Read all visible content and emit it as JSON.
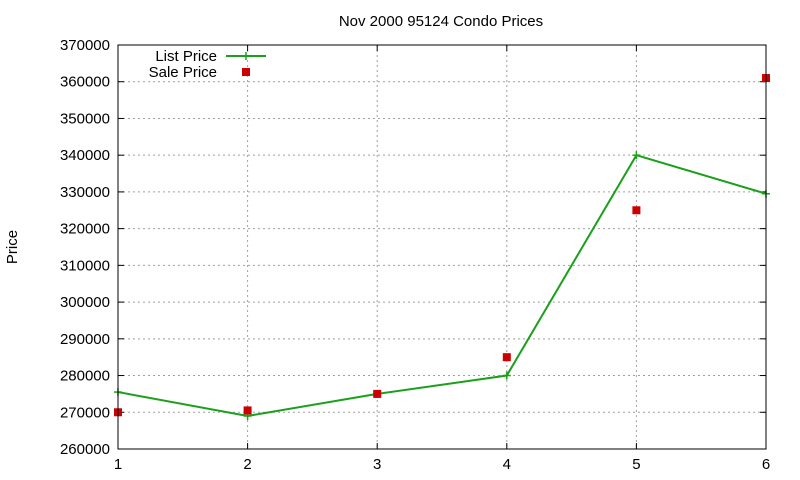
{
  "chart_data": {
    "type": "line",
    "title": "Nov 2000 95124 Condo Prices",
    "xlabel": "",
    "ylabel": "Price",
    "x": [
      1,
      2,
      3,
      4,
      5,
      6
    ],
    "xlim": [
      1,
      6
    ],
    "ylim": [
      260000,
      370000
    ],
    "xticks": [
      1,
      2,
      3,
      4,
      5,
      6
    ],
    "yticks": [
      260000,
      270000,
      280000,
      290000,
      300000,
      310000,
      320000,
      330000,
      340000,
      350000,
      360000,
      370000
    ],
    "grid": true,
    "legend_position": "top-left",
    "series": [
      {
        "name": "List Price",
        "style": "linespoints",
        "marker": "plus",
        "color": "#1aa01a",
        "values": [
          275500,
          269000,
          275000,
          280000,
          340000,
          329500
        ]
      },
      {
        "name": "Sale Price",
        "style": "points",
        "marker": "square",
        "color": "#cc0000",
        "values": [
          270000,
          270500,
          275000,
          285000,
          325000,
          361000
        ]
      }
    ]
  }
}
